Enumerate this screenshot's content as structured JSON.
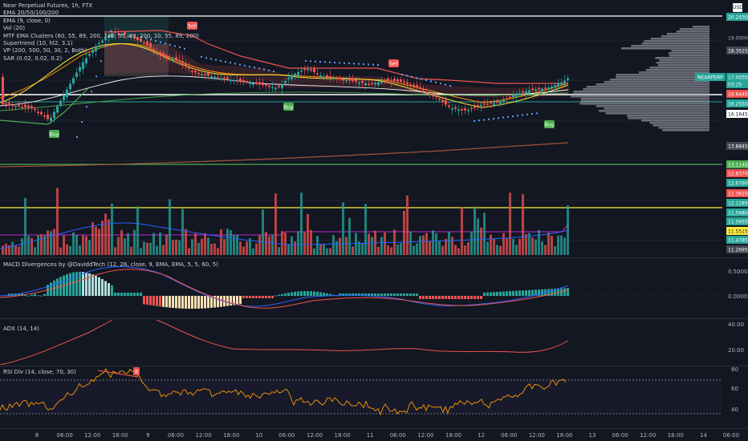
{
  "header": {
    "title": "Near Perpetual Futures, 1h, FTX",
    "currency": "USD"
  },
  "legend": [
    "EMA 20/50/100/200",
    "EMA (9, close, 0)",
    "Vol (20)",
    "MTF EMA Clusters (60, 55, 89, 200, 240, 55, 89, 200, 10, 55, 89, 200)",
    "Supertrend (10, hl2, 3.1)",
    "VP (200, 500, 50, 30, 2, Both)",
    "SAR (0.02, 0.02, 0.2)"
  ],
  "signals": {
    "buy": "Buy",
    "sell": "Sell",
    "rsi_flag": "B"
  },
  "symbol_badge": "NEARPERP",
  "price_badges": [
    {
      "value": "20.2430",
      "bg": "#26a69a",
      "fg": "#ffffff",
      "y": 21
    },
    {
      "value": "19.0000",
      "bg": "",
      "fg": "#b2b5be",
      "y": 47
    },
    {
      "value": "18.3525",
      "bg": "#434651",
      "fg": "#ffffff",
      "y": 63
    },
    {
      "value": "17.0035",
      "bg": "#26a69a",
      "fg": "#ffffff",
      "y": 96
    },
    {
      "value": "03:25",
      "bg": "#26a69a",
      "fg": "#ffffff",
      "y": 105
    },
    {
      "value": "16.6440",
      "bg": "#ef5350",
      "fg": "#ffffff",
      "y": 117
    },
    {
      "value": "16.2550",
      "bg": "#26a69a",
      "fg": "#ffffff",
      "y": 129
    },
    {
      "value": "16.1645",
      "bg": "#ffffff",
      "fg": "#131722",
      "y": 142
    },
    {
      "value": "13.8845",
      "bg": "#434651",
      "fg": "#ffffff",
      "y": 182
    },
    {
      "value": "13.1140",
      "bg": "#4caf50",
      "fg": "#ffffff",
      "y": 205
    },
    {
      "value": "12.8370",
      "bg": "#ef5350",
      "fg": "#ffffff",
      "y": 216
    },
    {
      "value": "12.6790",
      "bg": "#26a69a",
      "fg": "#ffffff",
      "y": 228
    },
    {
      "value": "12.3610",
      "bg": "#ef5350",
      "fg": "#ffffff",
      "y": 241
    },
    {
      "value": "12.1285",
      "bg": "#26a69a",
      "fg": "#ffffff",
      "y": 253
    },
    {
      "value": "11.5680",
      "bg": "#26a69a",
      "fg": "#ffffff",
      "y": 265
    },
    {
      "value": "11.5655",
      "bg": "#26a69a",
      "fg": "#ffffff",
      "y": 276
    },
    {
      "value": "11.5515",
      "bg": "#ffeb3b",
      "fg": "#131722",
      "y": 288
    },
    {
      "value": "11.4785",
      "bg": "#26a69a",
      "fg": "#ffffff",
      "y": 299
    },
    {
      "value": "11.2695",
      "bg": "#434651",
      "fg": "#ffffff",
      "y": 311
    }
  ],
  "macd": {
    "title": "MACD Divergences by @DaviddTech (12, 26, close, 9, EMA, EMA, 5, 5, 60, 5)",
    "scale": [
      "0.5000",
      "0.0000"
    ]
  },
  "adx": {
    "title": "ADX (14, 14)",
    "scale": [
      "40.00",
      "20.00"
    ]
  },
  "rsi": {
    "title": "RSI Div (14, close, 70, 30)",
    "scale": [
      "80",
      "60",
      "40"
    ]
  },
  "time_axis": [
    "8",
    "06:00",
    "12:00",
    "18:00",
    "9",
    "06:00",
    "12:00",
    "18:00",
    "10",
    "06:00",
    "12:00",
    "18:00",
    "11",
    "06:00",
    "12:00",
    "18:00",
    "12",
    "06:00",
    "12:00",
    "18:00",
    "13",
    "06:00",
    "12:00",
    "18:00",
    "14",
    "06:00"
  ],
  "colors": {
    "up": "#26a69a",
    "down": "#ef5350",
    "background": "#131722"
  }
}
